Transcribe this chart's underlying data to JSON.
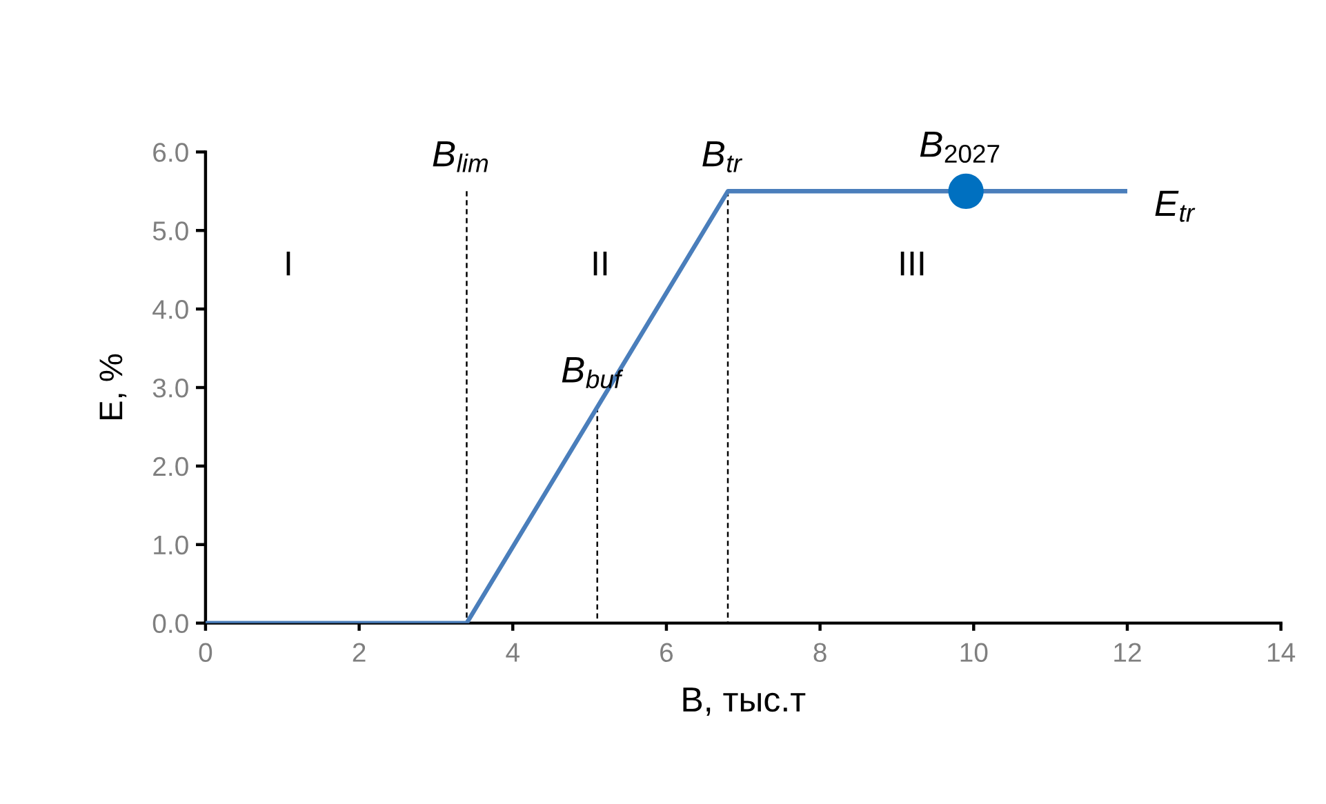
{
  "chart_data": {
    "type": "line",
    "xlabel": "B, тыс.т",
    "ylabel": "E, %",
    "xlim": [
      0,
      14
    ],
    "xticks": [
      0,
      2,
      4,
      6,
      8,
      10,
      12,
      14
    ],
    "ylim": [
      0,
      6
    ],
    "yticks": [
      {
        "value": 0,
        "label": "0.0"
      },
      {
        "value": 1,
        "label": "1.0"
      },
      {
        "value": 2,
        "label": "2.0"
      },
      {
        "value": 3,
        "label": "3.0"
      },
      {
        "value": 4,
        "label": "4.0"
      },
      {
        "value": 5,
        "label": "5.0"
      },
      {
        "value": 6,
        "label": "6.0"
      }
    ],
    "series": [
      {
        "color": "#4a7ebb",
        "line_style": "solid",
        "x": [
          0,
          3.4,
          6.8,
          12
        ],
        "values": [
          0,
          0,
          5.5,
          5.5
        ]
      },
      {
        "color": "#000000",
        "line_style": "dashed",
        "x": [
          3.4,
          3.4
        ],
        "values": [
          5.5,
          0
        ]
      },
      {
        "color": "#000000",
        "line_style": "dashed",
        "x": [
          5.1,
          5.1
        ],
        "values": [
          2.75,
          0
        ]
      },
      {
        "color": "#000000",
        "line_style": "dashed",
        "x": [
          6.8,
          6.8
        ],
        "values": [
          5.5,
          0
        ]
      },
      {
        "type": "scatter",
        "color": "#0070c0",
        "marker": "circle",
        "x": [
          9.9
        ],
        "values": [
          5.5
        ]
      }
    ],
    "annotations": [
      {
        "text": "B$_{lim}$",
        "x": 3.4,
        "y": 5.5
      },
      {
        "text": "B$_{tr}$",
        "x": 6.8,
        "y": 5.5
      },
      {
        "text": "B$_{2027}$",
        "x": 9.9,
        "y": 5.5
      },
      {
        "text": "B$_{buf}$",
        "x": 5.1,
        "y": 2.75
      },
      {
        "text": "E$_{tr}$",
        "x": 12,
        "y": 5.5
      },
      "I",
      "II",
      "III"
    ]
  }
}
